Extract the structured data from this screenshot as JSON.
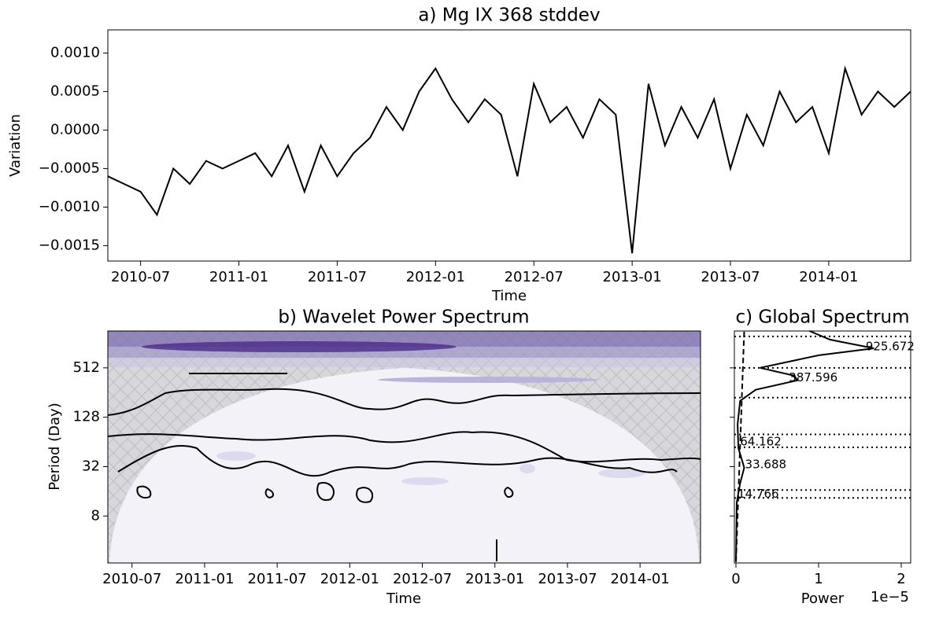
{
  "chart_data": [
    {
      "type": "line",
      "title": "a) Mg IX 368 stddev",
      "xlabel": "Time",
      "ylabel": "Variation",
      "color": "#000000",
      "x": [
        "2010-05",
        "2010-06",
        "2010-07",
        "2010-08",
        "2010-09",
        "2010-10",
        "2010-11",
        "2010-12",
        "2011-01",
        "2011-02",
        "2011-03",
        "2011-04",
        "2011-05",
        "2011-06",
        "2011-07",
        "2011-08",
        "2011-09",
        "2011-10",
        "2011-11",
        "2011-12",
        "2012-01",
        "2012-02",
        "2012-03",
        "2012-04",
        "2012-05",
        "2012-06",
        "2012-07",
        "2012-08",
        "2012-09",
        "2012-10",
        "2012-11",
        "2012-12",
        "2013-01",
        "2013-02",
        "2013-03",
        "2013-04",
        "2013-05",
        "2013-06",
        "2013-07",
        "2013-08",
        "2013-09",
        "2013-10",
        "2013-11",
        "2013-12",
        "2014-01",
        "2014-02",
        "2014-03",
        "2014-04",
        "2014-05",
        "2014-06"
      ],
      "values": [
        -0.0006,
        -0.0007,
        -0.0008,
        -0.0011,
        -0.0005,
        -0.0007,
        -0.0004,
        -0.0005,
        -0.0004,
        -0.0003,
        -0.0006,
        -0.0002,
        -0.0008,
        -0.0002,
        -0.0006,
        -0.0003,
        -0.0001,
        0.0003,
        0.0,
        0.0005,
        0.0008,
        0.0004,
        0.0001,
        0.0004,
        0.0002,
        -0.0006,
        0.0006,
        0.0001,
        0.0003,
        -0.0001,
        0.0004,
        0.0002,
        -0.0016,
        0.0006,
        -0.0002,
        0.0003,
        -0.0001,
        0.0004,
        -0.0005,
        0.0002,
        -0.0002,
        0.0005,
        0.0001,
        0.0003,
        -0.0003,
        0.0008,
        0.0002,
        0.0005,
        0.0003,
        0.0005
      ],
      "xlim": [
        "2010-05",
        "2014-06"
      ],
      "xticks": [
        "2010-07",
        "2011-01",
        "2011-07",
        "2012-01",
        "2012-07",
        "2013-01",
        "2013-07",
        "2014-01"
      ],
      "ylim": [
        -0.0017,
        0.0013
      ],
      "yticks": [
        {
          "value": -0.0015,
          "label": "−0.0015"
        },
        {
          "value": -0.001,
          "label": "−0.0010"
        },
        {
          "value": -0.0005,
          "label": "−0.0005"
        },
        {
          "value": 0,
          "label": "0.0000"
        },
        {
          "value": 0.0005,
          "label": "0.0005"
        },
        {
          "value": 0.001,
          "label": "0.0010"
        }
      ]
    },
    {
      "type": "wavelet",
      "title": "b) Wavelet Power Spectrum",
      "xlabel": "Time",
      "ylabel": "Period (Day)",
      "log_base": 2,
      "xlim": [
        "2010-05",
        "2014-06"
      ],
      "xticks": [
        "2010-07",
        "2011-01",
        "2011-07",
        "2012-01",
        "2012-07",
        "2013-01",
        "2013-07",
        "2014-01"
      ],
      "ylim": [
        2.14,
        1440
      ],
      "yticks": [
        8,
        32,
        128,
        512
      ]
    },
    {
      "type": "spectrum",
      "title": "c) Global Spectrum",
      "xlabel": "Power",
      "x_offset_label": "1e−5",
      "log_base": 2,
      "xlim": [
        0,
        2.1
      ],
      "xticks": [
        0,
        1,
        2
      ],
      "ylim": [
        2.14,
        1440
      ],
      "yticks": [
        8,
        32,
        128,
        512
      ],
      "periods": [
        1440,
        1130,
        887,
        728,
        512,
        410,
        360,
        277,
        203,
        105,
        54,
        31,
        20,
        11.6,
        2.2
      ],
      "power": [
        0.89,
        1.14,
        1.67,
        1.0,
        0.29,
        0.71,
        0.74,
        0.24,
        0.05,
        0.02,
        0.03,
        0.1,
        0.05,
        0.01,
        0.0
      ],
      "significance_periods": [
        2.2,
        1440
      ],
      "significance_power": [
        0.0,
        0.1
      ],
      "hlines": [
        1236,
        512,
        222,
        79,
        55,
        16.6,
        13.3
      ],
      "annotations": [
        {
          "y": 925.672,
          "x": 1.57
        },
        {
          "y": 387.596,
          "x": 0.64
        },
        {
          "y": 64.162,
          "x": 0.05
        },
        {
          "y": 33.688,
          "x": 0.11
        },
        {
          "y": 14.766,
          "x": 0.02
        }
      ],
      "annotation_color": "#800080"
    }
  ]
}
